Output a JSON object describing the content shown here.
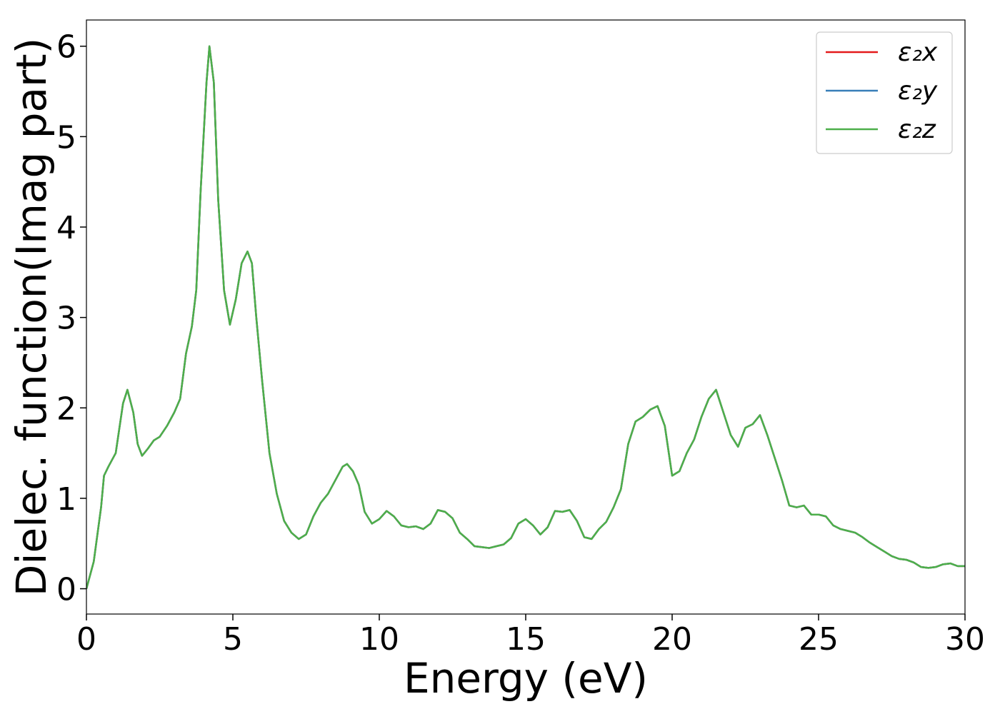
{
  "chart_data": {
    "type": "line",
    "xlabel": "Energy (eV)",
    "ylabel": "Dielec. function(Imag part)",
    "x": [
      0,
      0.25,
      0.5,
      0.6,
      0.75,
      1.0,
      1.25,
      1.4,
      1.6,
      1.75,
      1.9,
      2.1,
      2.3,
      2.5,
      2.75,
      3.0,
      3.2,
      3.4,
      3.6,
      3.75,
      3.9,
      4.1,
      4.2,
      4.35,
      4.5,
      4.7,
      4.9,
      5.1,
      5.3,
      5.5,
      5.65,
      5.8,
      6.0,
      6.25,
      6.5,
      6.75,
      7.0,
      7.25,
      7.5,
      7.75,
      8.0,
      8.25,
      8.5,
      8.75,
      8.9,
      9.1,
      9.3,
      9.5,
      9.75,
      10.0,
      10.25,
      10.5,
      10.75,
      11.0,
      11.25,
      11.5,
      11.75,
      12.0,
      12.25,
      12.5,
      12.75,
      13.0,
      13.25,
      13.5,
      13.75,
      14.0,
      14.25,
      14.5,
      14.75,
      15.0,
      15.25,
      15.5,
      15.75,
      16.0,
      16.25,
      16.5,
      16.75,
      17.0,
      17.25,
      17.5,
      17.75,
      18.0,
      18.25,
      18.5,
      18.75,
      19.0,
      19.25,
      19.5,
      19.75,
      20.0,
      20.25,
      20.5,
      20.75,
      21.0,
      21.25,
      21.5,
      21.75,
      22.0,
      22.25,
      22.5,
      22.75,
      23.0,
      23.25,
      23.5,
      23.75,
      24.0,
      24.25,
      24.5,
      24.75,
      25.0,
      25.25,
      25.5,
      25.75,
      26.0,
      26.25,
      26.5,
      26.75,
      27.0,
      27.25,
      27.5,
      27.75,
      28.0,
      28.25,
      28.5,
      28.75,
      29.0,
      29.25,
      29.5,
      29.75,
      30.0
    ],
    "series": [
      {
        "name": "ε₂x",
        "color": "#e41a1c",
        "values": [
          0,
          0.3,
          0.9,
          1.25,
          1.35,
          1.5,
          2.05,
          2.2,
          1.95,
          1.6,
          1.47,
          1.55,
          1.64,
          1.68,
          1.8,
          1.95,
          2.1,
          2.6,
          2.9,
          3.3,
          4.4,
          5.6,
          6.0,
          5.6,
          4.3,
          3.3,
          2.92,
          3.2,
          3.6,
          3.73,
          3.6,
          3.0,
          2.3,
          1.5,
          1.05,
          0.75,
          0.62,
          0.55,
          0.6,
          0.8,
          0.95,
          1.05,
          1.2,
          1.35,
          1.38,
          1.3,
          1.15,
          0.85,
          0.72,
          0.77,
          0.86,
          0.8,
          0.7,
          0.68,
          0.69,
          0.66,
          0.72,
          0.87,
          0.85,
          0.78,
          0.62,
          0.55,
          0.47,
          0.46,
          0.45,
          0.47,
          0.49,
          0.56,
          0.72,
          0.77,
          0.7,
          0.6,
          0.68,
          0.86,
          0.85,
          0.87,
          0.75,
          0.57,
          0.55,
          0.66,
          0.74,
          0.9,
          1.1,
          1.6,
          1.85,
          1.9,
          1.98,
          2.02,
          1.8,
          1.25,
          1.3,
          1.5,
          1.65,
          1.9,
          2.1,
          2.2,
          1.95,
          1.7,
          1.57,
          1.78,
          1.82,
          1.92,
          1.7,
          1.45,
          1.2,
          0.92,
          0.9,
          0.92,
          0.82,
          0.82,
          0.8,
          0.7,
          0.66,
          0.64,
          0.62,
          0.57,
          0.51,
          0.46,
          0.41,
          0.36,
          0.33,
          0.32,
          0.29,
          0.24,
          0.23,
          0.24,
          0.27,
          0.28,
          0.25,
          0.25
        ]
      },
      {
        "name": "ε₂y",
        "color": "#377eb8",
        "values": [
          0,
          0.3,
          0.9,
          1.25,
          1.35,
          1.5,
          2.05,
          2.2,
          1.95,
          1.6,
          1.47,
          1.55,
          1.64,
          1.68,
          1.8,
          1.95,
          2.1,
          2.6,
          2.9,
          3.3,
          4.4,
          5.6,
          6.0,
          5.6,
          4.3,
          3.3,
          2.92,
          3.2,
          3.6,
          3.73,
          3.6,
          3.0,
          2.3,
          1.5,
          1.05,
          0.75,
          0.62,
          0.55,
          0.6,
          0.8,
          0.95,
          1.05,
          1.2,
          1.35,
          1.38,
          1.3,
          1.15,
          0.85,
          0.72,
          0.77,
          0.86,
          0.8,
          0.7,
          0.68,
          0.69,
          0.66,
          0.72,
          0.87,
          0.85,
          0.78,
          0.62,
          0.55,
          0.47,
          0.46,
          0.45,
          0.47,
          0.49,
          0.56,
          0.72,
          0.77,
          0.7,
          0.6,
          0.68,
          0.86,
          0.85,
          0.87,
          0.75,
          0.57,
          0.55,
          0.66,
          0.74,
          0.9,
          1.1,
          1.6,
          1.85,
          1.9,
          1.98,
          2.02,
          1.8,
          1.25,
          1.3,
          1.5,
          1.65,
          1.9,
          2.1,
          2.2,
          1.95,
          1.7,
          1.57,
          1.78,
          1.82,
          1.92,
          1.7,
          1.45,
          1.2,
          0.92,
          0.9,
          0.92,
          0.82,
          0.82,
          0.8,
          0.7,
          0.66,
          0.64,
          0.62,
          0.57,
          0.51,
          0.46,
          0.41,
          0.36,
          0.33,
          0.32,
          0.29,
          0.24,
          0.23,
          0.24,
          0.27,
          0.28,
          0.25,
          0.25
        ]
      },
      {
        "name": "ε₂z",
        "color": "#4daf4a",
        "values": [
          0,
          0.3,
          0.9,
          1.25,
          1.35,
          1.5,
          2.05,
          2.2,
          1.95,
          1.6,
          1.47,
          1.55,
          1.64,
          1.68,
          1.8,
          1.95,
          2.1,
          2.6,
          2.9,
          3.3,
          4.4,
          5.6,
          6.0,
          5.6,
          4.3,
          3.3,
          2.92,
          3.2,
          3.6,
          3.73,
          3.6,
          3.0,
          2.3,
          1.5,
          1.05,
          0.75,
          0.62,
          0.55,
          0.6,
          0.8,
          0.95,
          1.05,
          1.2,
          1.35,
          1.38,
          1.3,
          1.15,
          0.85,
          0.72,
          0.77,
          0.86,
          0.8,
          0.7,
          0.68,
          0.69,
          0.66,
          0.72,
          0.87,
          0.85,
          0.78,
          0.62,
          0.55,
          0.47,
          0.46,
          0.45,
          0.47,
          0.49,
          0.56,
          0.72,
          0.77,
          0.7,
          0.6,
          0.68,
          0.86,
          0.85,
          0.87,
          0.75,
          0.57,
          0.55,
          0.66,
          0.74,
          0.9,
          1.1,
          1.6,
          1.85,
          1.9,
          1.98,
          2.02,
          1.8,
          1.25,
          1.3,
          1.5,
          1.65,
          1.9,
          2.1,
          2.2,
          1.95,
          1.7,
          1.57,
          1.78,
          1.82,
          1.92,
          1.7,
          1.45,
          1.2,
          0.92,
          0.9,
          0.92,
          0.82,
          0.82,
          0.8,
          0.7,
          0.66,
          0.64,
          0.62,
          0.57,
          0.51,
          0.46,
          0.41,
          0.36,
          0.33,
          0.32,
          0.29,
          0.24,
          0.23,
          0.24,
          0.27,
          0.28,
          0.25,
          0.25
        ]
      }
    ],
    "xlim": [
      0,
      30
    ],
    "xticks": [
      0,
      5,
      10,
      15,
      20,
      25,
      30
    ],
    "ylim": [
      -0.28,
      6.29
    ],
    "yticks": [
      0,
      1,
      2,
      3,
      4,
      5,
      6
    ],
    "legend": "upper-right"
  }
}
